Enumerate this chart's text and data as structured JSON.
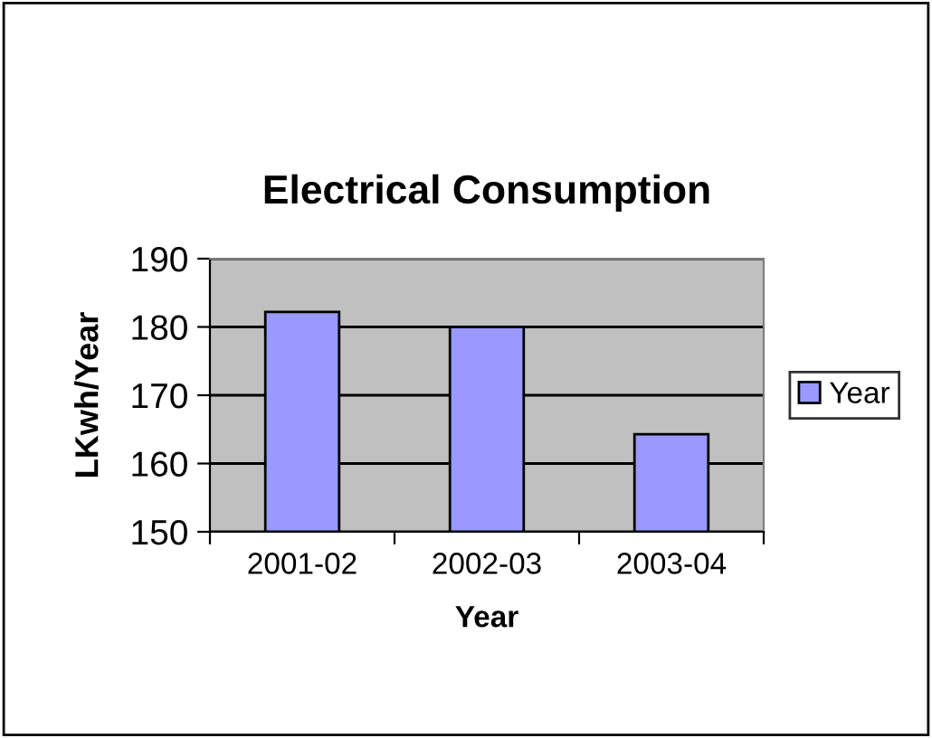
{
  "chart_data": {
    "type": "bar",
    "title": "Electrical Consumption",
    "xlabel": "Year",
    "ylabel": "LKwh/Year",
    "categories": [
      "2001-02",
      "2002-03",
      "2003-04"
    ],
    "series": [
      {
        "name": "Year",
        "color": "#9999ff",
        "values": [
          182.2,
          180,
          164.3
        ]
      }
    ],
    "ylim": [
      150,
      190
    ],
    "yticks": [
      150,
      160,
      170,
      180,
      190
    ],
    "grid": "y",
    "legend": "right"
  }
}
